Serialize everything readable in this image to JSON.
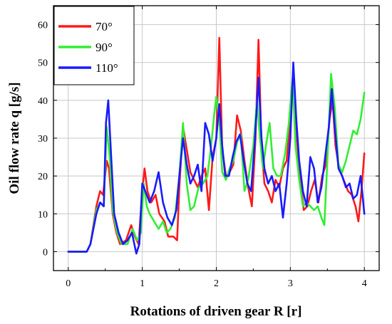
{
  "chart_data": {
    "type": "line",
    "xlabel": "Rotations of driven gear R [r]",
    "ylabel": "Oil flow rate q [g/s]",
    "xlim": [
      -0.2,
      4.2
    ],
    "ylim": [
      -5,
      65
    ],
    "xticks": [
      0,
      1,
      2,
      3,
      4
    ],
    "yticks": [
      0,
      10,
      20,
      30,
      40,
      50,
      60
    ],
    "grid": true,
    "legend_position": "top-left",
    "series": [
      {
        "name": "70°",
        "color": "#ff1a1a",
        "points": [
          [
            0,
            0
          ],
          [
            0.25,
            0
          ],
          [
            0.3,
            2
          ],
          [
            0.38,
            12
          ],
          [
            0.43,
            16
          ],
          [
            0.47,
            15
          ],
          [
            0.52,
            24
          ],
          [
            0.55,
            22
          ],
          [
            0.6,
            10
          ],
          [
            0.65,
            5
          ],
          [
            0.7,
            2
          ],
          [
            0.78,
            3
          ],
          [
            0.85,
            7
          ],
          [
            0.9,
            4
          ],
          [
            0.95,
            2
          ],
          [
            1.0,
            16
          ],
          [
            1.03,
            22
          ],
          [
            1.07,
            16
          ],
          [
            1.12,
            13
          ],
          [
            1.18,
            15
          ],
          [
            1.23,
            10
          ],
          [
            1.3,
            8
          ],
          [
            1.35,
            4
          ],
          [
            1.42,
            4
          ],
          [
            1.47,
            3
          ],
          [
            1.5,
            17
          ],
          [
            1.55,
            33
          ],
          [
            1.6,
            27
          ],
          [
            1.65,
            21
          ],
          [
            1.7,
            19
          ],
          [
            1.75,
            17
          ],
          [
            1.8,
            20
          ],
          [
            1.85,
            22
          ],
          [
            1.9,
            11
          ],
          [
            1.95,
            25
          ],
          [
            2.0,
            30
          ],
          [
            2.04,
            56.5
          ],
          [
            2.08,
            27
          ],
          [
            2.13,
            20
          ],
          [
            2.18,
            21
          ],
          [
            2.23,
            23
          ],
          [
            2.28,
            36
          ],
          [
            2.33,
            32
          ],
          [
            2.38,
            24
          ],
          [
            2.43,
            17
          ],
          [
            2.48,
            12
          ],
          [
            2.53,
            30
          ],
          [
            2.57,
            56
          ],
          [
            2.61,
            28
          ],
          [
            2.65,
            18
          ],
          [
            2.7,
            16
          ],
          [
            2.75,
            13
          ],
          [
            2.8,
            19
          ],
          [
            2.85,
            17
          ],
          [
            2.9,
            22
          ],
          [
            2.95,
            24
          ],
          [
            3.0,
            35
          ],
          [
            3.04,
            48
          ],
          [
            3.08,
            32
          ],
          [
            3.13,
            20
          ],
          [
            3.18,
            11
          ],
          [
            3.23,
            12
          ],
          [
            3.28,
            16
          ],
          [
            3.33,
            19
          ],
          [
            3.38,
            13
          ],
          [
            3.43,
            20
          ],
          [
            3.48,
            23
          ],
          [
            3.53,
            35
          ],
          [
            3.57,
            40
          ],
          [
            3.61,
            28
          ],
          [
            3.66,
            22
          ],
          [
            3.72,
            19
          ],
          [
            3.78,
            16
          ],
          [
            3.83,
            15
          ],
          [
            3.88,
            12
          ],
          [
            3.92,
            8
          ],
          [
            3.96,
            16
          ],
          [
            4.0,
            26
          ]
        ]
      },
      {
        "name": "90°",
        "color": "#33ee33",
        "points": [
          [
            0,
            0
          ],
          [
            0.25,
            0
          ],
          [
            0.3,
            2
          ],
          [
            0.38,
            11
          ],
          [
            0.43,
            13
          ],
          [
            0.48,
            12
          ],
          [
            0.52,
            33
          ],
          [
            0.56,
            25
          ],
          [
            0.6,
            11
          ],
          [
            0.66,
            5
          ],
          [
            0.72,
            2
          ],
          [
            0.8,
            2
          ],
          [
            0.87,
            6
          ],
          [
            0.93,
            3
          ],
          [
            0.98,
            5
          ],
          [
            1.02,
            18
          ],
          [
            1.06,
            12
          ],
          [
            1.1,
            10
          ],
          [
            1.16,
            8
          ],
          [
            1.22,
            6
          ],
          [
            1.28,
            8
          ],
          [
            1.33,
            5
          ],
          [
            1.38,
            6
          ],
          [
            1.44,
            9
          ],
          [
            1.5,
            20
          ],
          [
            1.55,
            34
          ],
          [
            1.6,
            18
          ],
          [
            1.65,
            11
          ],
          [
            1.7,
            12
          ],
          [
            1.76,
            17
          ],
          [
            1.82,
            18
          ],
          [
            1.88,
            20
          ],
          [
            1.93,
            28
          ],
          [
            1.97,
            36
          ],
          [
            2.0,
            41
          ],
          [
            2.04,
            35
          ],
          [
            2.08,
            21
          ],
          [
            2.13,
            19
          ],
          [
            2.18,
            22
          ],
          [
            2.23,
            24
          ],
          [
            2.28,
            29
          ],
          [
            2.33,
            31
          ],
          [
            2.38,
            16
          ],
          [
            2.43,
            19
          ],
          [
            2.5,
            28
          ],
          [
            2.55,
            40
          ],
          [
            2.59,
            30
          ],
          [
            2.63,
            22
          ],
          [
            2.67,
            28
          ],
          [
            2.72,
            34
          ],
          [
            2.77,
            22
          ],
          [
            2.82,
            20
          ],
          [
            2.87,
            20
          ],
          [
            2.93,
            26
          ],
          [
            2.98,
            34
          ],
          [
            3.03,
            46
          ],
          [
            3.07,
            28
          ],
          [
            3.12,
            19
          ],
          [
            3.17,
            12
          ],
          [
            3.22,
            13
          ],
          [
            3.27,
            12
          ],
          [
            3.32,
            11
          ],
          [
            3.37,
            12
          ],
          [
            3.42,
            9
          ],
          [
            3.46,
            7
          ],
          [
            3.5,
            24
          ],
          [
            3.55,
            47
          ],
          [
            3.6,
            38
          ],
          [
            3.65,
            23
          ],
          [
            3.7,
            21
          ],
          [
            3.75,
            24
          ],
          [
            3.8,
            28
          ],
          [
            3.85,
            32
          ],
          [
            3.9,
            31
          ],
          [
            3.95,
            35
          ],
          [
            4.0,
            42
          ]
        ]
      },
      {
        "name": "110°",
        "color": "#1a1aff",
        "points": [
          [
            0,
            0
          ],
          [
            0.25,
            0
          ],
          [
            0.3,
            2
          ],
          [
            0.38,
            10
          ],
          [
            0.43,
            13
          ],
          [
            0.48,
            12
          ],
          [
            0.51,
            34
          ],
          [
            0.54,
            40
          ],
          [
            0.58,
            25
          ],
          [
            0.62,
            10
          ],
          [
            0.68,
            5
          ],
          [
            0.74,
            2
          ],
          [
            0.8,
            3
          ],
          [
            0.86,
            5
          ],
          [
            0.92,
            -0.5
          ],
          [
            0.96,
            2
          ],
          [
            1.0,
            18
          ],
          [
            1.04,
            16
          ],
          [
            1.1,
            13
          ],
          [
            1.16,
            16
          ],
          [
            1.22,
            21
          ],
          [
            1.28,
            13
          ],
          [
            1.34,
            9
          ],
          [
            1.4,
            7
          ],
          [
            1.46,
            11
          ],
          [
            1.5,
            20
          ],
          [
            1.55,
            30
          ],
          [
            1.6,
            23
          ],
          [
            1.65,
            18
          ],
          [
            1.7,
            20
          ],
          [
            1.75,
            23
          ],
          [
            1.8,
            16
          ],
          [
            1.85,
            34
          ],
          [
            1.9,
            31
          ],
          [
            1.95,
            24
          ],
          [
            2.0,
            30
          ],
          [
            2.04,
            39
          ],
          [
            2.08,
            28
          ],
          [
            2.12,
            20
          ],
          [
            2.17,
            20
          ],
          [
            2.22,
            25
          ],
          [
            2.27,
            29
          ],
          [
            2.32,
            31
          ],
          [
            2.37,
            24
          ],
          [
            2.42,
            18
          ],
          [
            2.47,
            16
          ],
          [
            2.52,
            29
          ],
          [
            2.57,
            46
          ],
          [
            2.61,
            30
          ],
          [
            2.65,
            22
          ],
          [
            2.7,
            18
          ],
          [
            2.75,
            20
          ],
          [
            2.8,
            16
          ],
          [
            2.85,
            18
          ],
          [
            2.9,
            9
          ],
          [
            2.95,
            18
          ],
          [
            3.0,
            30
          ],
          [
            3.04,
            50
          ],
          [
            3.08,
            35
          ],
          [
            3.12,
            24
          ],
          [
            3.17,
            16
          ],
          [
            3.22,
            12
          ],
          [
            3.27,
            25
          ],
          [
            3.32,
            22
          ],
          [
            3.37,
            13
          ],
          [
            3.42,
            17
          ],
          [
            3.47,
            25
          ],
          [
            3.52,
            33
          ],
          [
            3.56,
            43
          ],
          [
            3.6,
            33
          ],
          [
            3.65,
            22
          ],
          [
            3.7,
            20
          ],
          [
            3.75,
            17
          ],
          [
            3.8,
            18
          ],
          [
            3.85,
            14
          ],
          [
            3.9,
            15
          ],
          [
            3.95,
            20
          ],
          [
            4.0,
            10
          ]
        ]
      }
    ]
  }
}
